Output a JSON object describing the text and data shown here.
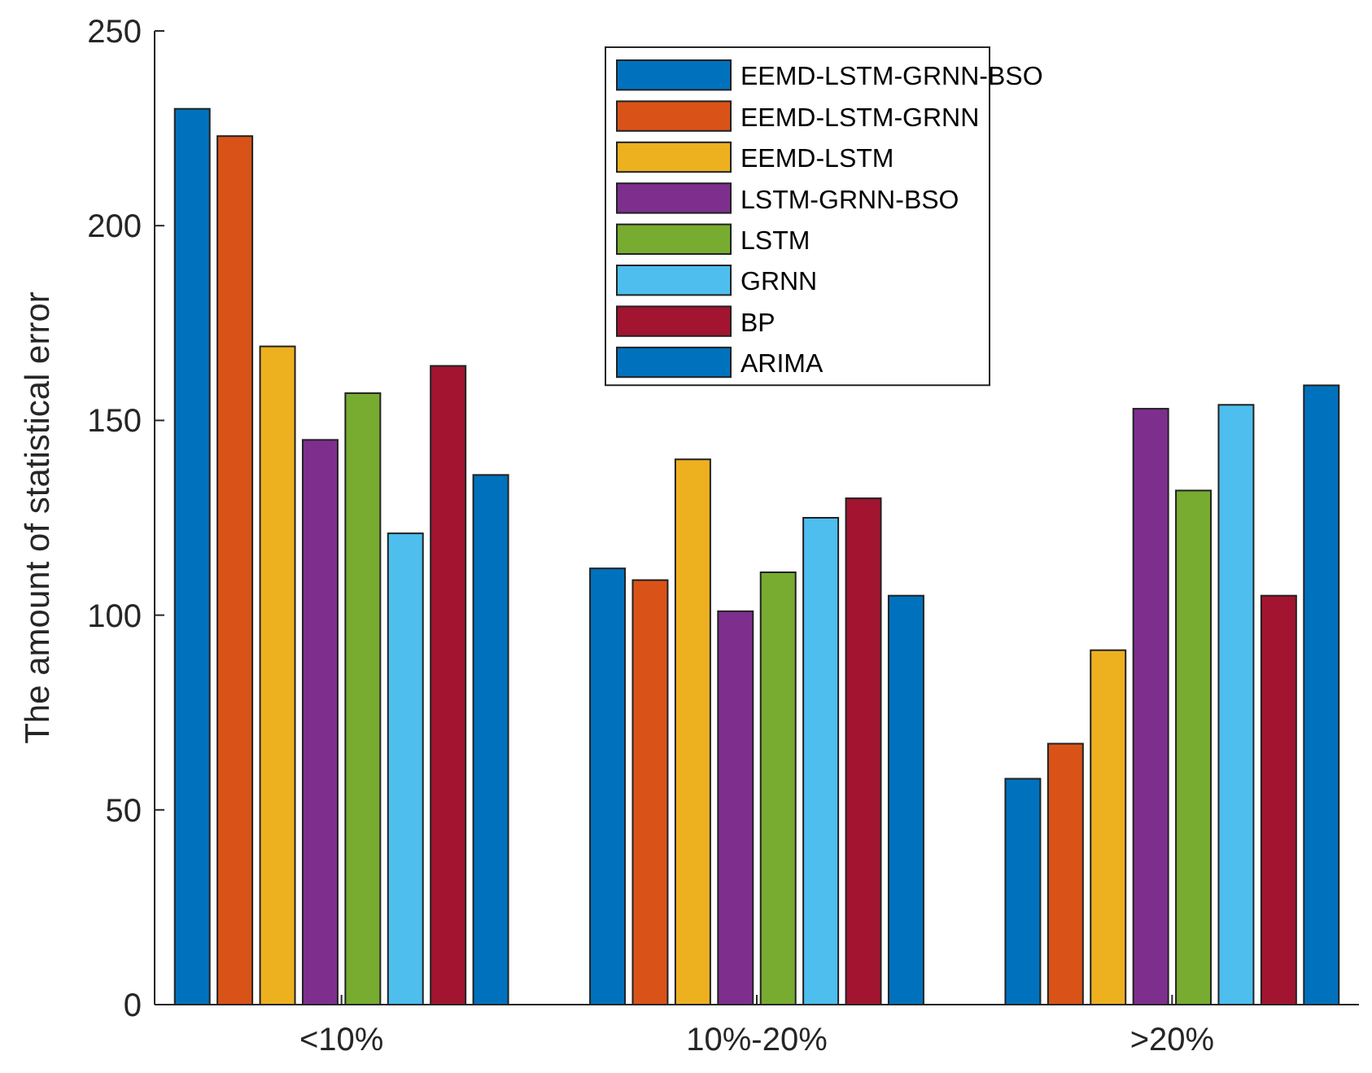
{
  "chart_data": {
    "type": "bar",
    "ylabel": "The amount of statistical error",
    "categories": [
      "<10%",
      "10%-20%",
      ">20%"
    ],
    "series": [
      {
        "name": "EEMD-LSTM-GRNN-BSO",
        "color": "#0072bd",
        "values": [
          230,
          112,
          58
        ]
      },
      {
        "name": "EEMD-LSTM-GRNN",
        "color": "#d95319",
        "values": [
          223,
          109,
          67
        ]
      },
      {
        "name": "EEMD-LSTM",
        "color": "#edb120",
        "values": [
          169,
          140,
          91
        ]
      },
      {
        "name": "LSTM-GRNN-BSO",
        "color": "#7e2f8e",
        "values": [
          145,
          101,
          153
        ]
      },
      {
        "name": "LSTM",
        "color": "#77ac30",
        "values": [
          157,
          111,
          132
        ]
      },
      {
        "name": "GRNN",
        "color": "#4dbeee",
        "values": [
          121,
          125,
          154
        ]
      },
      {
        "name": "BP",
        "color": "#a2142f",
        "values": [
          164,
          130,
          105
        ]
      },
      {
        "name": "ARIMA",
        "color": "#0072bd",
        "values": [
          136,
          105,
          159
        ]
      }
    ],
    "ylim": [
      0,
      250
    ],
    "yticks": [
      0,
      50,
      100,
      150,
      200,
      250
    ],
    "legend": "top",
    "grid": false
  }
}
